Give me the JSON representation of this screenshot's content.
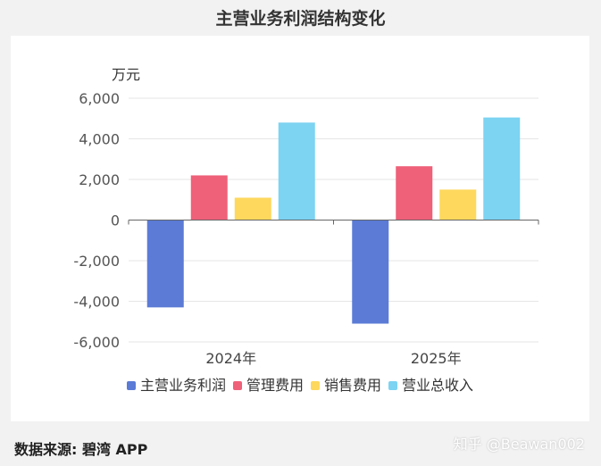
{
  "page_title": "主营业务利润结构变化",
  "source_text": "数据来源: 碧湾 APP",
  "credit_text": "知乎 @Beawan002",
  "chart_data": {
    "type": "bar",
    "title": "主营业务利润结构变化",
    "ylabel": "万元",
    "xlabel": "",
    "categories": [
      "2024年",
      "2025年"
    ],
    "series": [
      {
        "name": "主营业务利润",
        "color": "#5b7bd6",
        "values": [
          -4300,
          -5100
        ]
      },
      {
        "name": "管理费用",
        "color": "#ef6079",
        "values": [
          2200,
          2650
        ]
      },
      {
        "name": "销售费用",
        "color": "#fdd85d",
        "values": [
          1100,
          1500
        ]
      },
      {
        "name": "营业总收入",
        "color": "#7dd3f2",
        "values": [
          4800,
          5050
        ]
      }
    ],
    "ylim": [
      -6000,
      6000
    ],
    "yticks": [
      6000,
      4000,
      2000,
      0,
      -2000,
      -4000,
      -6000
    ],
    "ytick_labels": [
      "6,000",
      "4,000",
      "2,000",
      "0",
      "-2,000",
      "-4,000",
      "-6,000"
    ],
    "grid": true,
    "legend_position": "bottom"
  }
}
